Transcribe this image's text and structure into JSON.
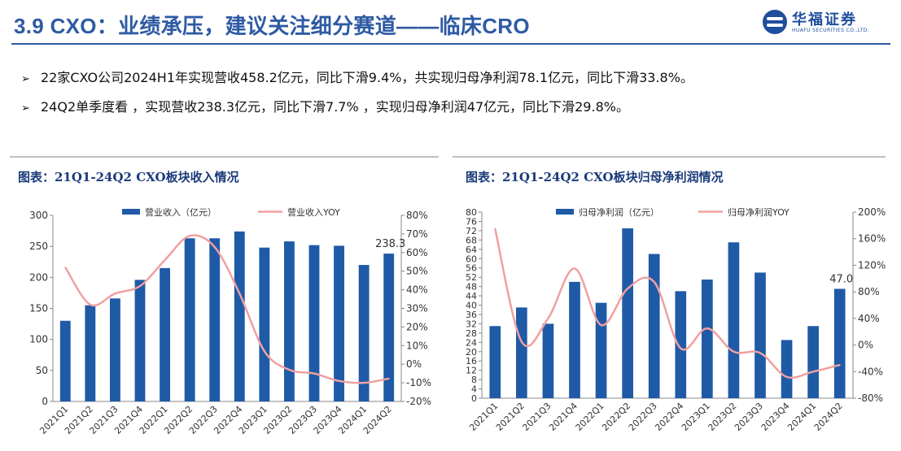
{
  "header": {
    "title": "3.9 CXO：业绩承压，建议关注细分赛道——临床CRO",
    "logo": {
      "name_cn": "华福证券",
      "name_en": "HUAFU SECURITIES CO.,LTD.",
      "icon": "huafu-logo-icon",
      "color": "#1f4e9c"
    }
  },
  "bullets": [
    {
      "marker": "➢",
      "text": "22家CXO公司2024H1年实现营收458.2亿元，同比下滑9.4%，共实现归母净利润78.1亿元，同比下滑33.8%。"
    },
    {
      "marker": "➢",
      "text": "24Q2单季度看  ，实现营收238.3亿元，同比下滑7.7% ，实现归母净利润47亿元，同比下滑29.8%。"
    }
  ],
  "chart_data": [
    {
      "type": "bar",
      "title": "图表：21Q1-24Q2 CXO板块收入情况",
      "categories": [
        "2021Q1",
        "2021Q2",
        "2021Q3",
        "2021Q4",
        "2022Q1",
        "2022Q2",
        "2022Q3",
        "2022Q4",
        "2023Q1",
        "2023Q2",
        "2023Q3",
        "2023Q4",
        "2024Q1",
        "2024Q2"
      ],
      "series": [
        {
          "name": "营业收入（亿元）",
          "type": "bar",
          "axis": "left",
          "color": "#1f5aa6",
          "values": [
            130,
            155,
            166,
            196,
            215,
            263,
            263,
            274,
            248,
            258,
            252,
            251,
            220,
            238.3
          ]
        },
        {
          "name": "营业收入YOY",
          "type": "line",
          "axis": "right",
          "color": "#f0a0a0",
          "values": [
            52,
            32,
            38,
            42,
            56,
            69,
            63,
            38,
            7,
            -3,
            -5,
            -9,
            -10,
            -7.7
          ]
        }
      ],
      "last_bar_label": "238.3",
      "yleft": {
        "range": [
          0,
          300
        ],
        "ticks": [
          "0",
          "50",
          "100",
          "150",
          "200",
          "250",
          "300"
        ]
      },
      "yright": {
        "range": [
          -20,
          80
        ],
        "ticks": [
          "-20%",
          "-10%",
          "0%",
          "10%",
          "20%",
          "30%",
          "40%",
          "50%",
          "60%",
          "70%",
          "80%"
        ]
      },
      "legend_position": "top"
    },
    {
      "type": "bar",
      "title": "图表：21Q1-24Q2 CXO板块归母净利润情况",
      "categories": [
        "2021Q1",
        "2021Q2",
        "2021Q3",
        "2021Q4",
        "2022Q1",
        "2022Q2",
        "2022Q3",
        "2022Q4",
        "2023Q1",
        "2023Q2",
        "2023Q3",
        "2023Q4",
        "2024Q1",
        "2024Q2"
      ],
      "series": [
        {
          "name": "归母净利润（亿元）",
          "type": "bar",
          "axis": "left",
          "color": "#1f5aa6",
          "values": [
            31,
            39,
            32,
            50,
            41,
            73,
            62,
            46,
            51,
            67,
            54,
            25,
            31,
            47
          ]
        },
        {
          "name": "归母净利润YOY",
          "type": "line",
          "axis": "right",
          "color": "#f0a0a0",
          "values": [
            175,
            5,
            40,
            115,
            30,
            85,
            95,
            -5,
            25,
            -10,
            -12,
            -48,
            -40,
            -30
          ]
        }
      ],
      "last_bar_label": "47.0",
      "yleft": {
        "range": [
          0,
          80
        ],
        "ticks": [
          "0",
          "4",
          "8",
          "12",
          "16",
          "20",
          "24",
          "28",
          "32",
          "36",
          "40",
          "44",
          "48",
          "52",
          "56",
          "60",
          "64",
          "68",
          "72",
          "76",
          "80"
        ]
      },
      "yright": {
        "range": [
          -80,
          200
        ],
        "ticks": [
          "-80%",
          "-40%",
          "0%",
          "40%",
          "80%",
          "120%",
          "160%",
          "200%"
        ]
      },
      "legend_position": "top"
    }
  ]
}
